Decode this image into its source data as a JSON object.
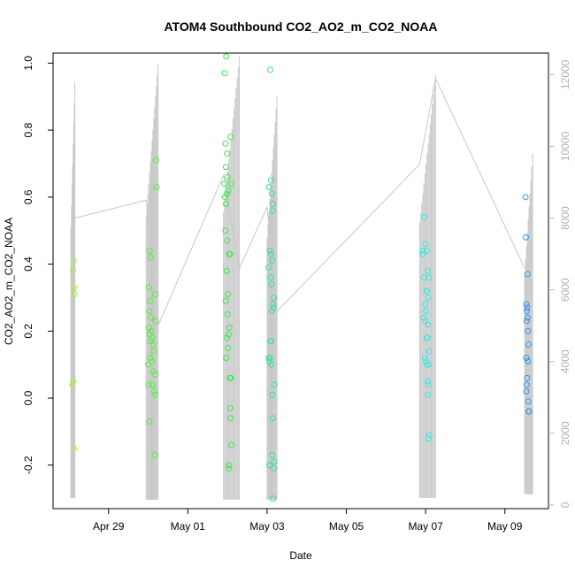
{
  "chart_data": {
    "type": "scatter",
    "title": "ATOM4 Southbound CO2_AO2_m_CO2_NOAA",
    "xlabel": "Date",
    "ylabel": "CO2_AO2_m_CO2_NOAA",
    "x_ticks": [
      {
        "day": 2,
        "label": "Apr 29"
      },
      {
        "day": 4,
        "label": "May 01"
      },
      {
        "day": 6,
        "label": "May 03"
      },
      {
        "day": 8,
        "label": "May 05"
      },
      {
        "day": 10,
        "label": "May 07"
      },
      {
        "day": 12,
        "label": "May 09"
      }
    ],
    "xlim": [
      0.6,
      13.1
    ],
    "ylim": [
      -0.33,
      1.03
    ],
    "y_ticks": [
      -0.2,
      0.0,
      0.2,
      0.4,
      0.6,
      0.8,
      1.0
    ],
    "y_tick_labels": [
      "-0.2",
      "0.0",
      "0.2",
      "0.4",
      "0.6",
      "0.8",
      "1.0"
    ],
    "y2lim": [
      -100,
      12600
    ],
    "y2_ticks": [
      0,
      2000,
      4000,
      6000,
      8000,
      10000,
      12000
    ],
    "y2_tick_labels": [
      "0",
      "2000",
      "4000",
      "6000",
      "8000",
      "10000",
      "12000"
    ],
    "grid": false,
    "series": [
      {
        "color": "#a8f23a",
        "points": [
          [
            1.12,
            0.41
          ],
          [
            1.1,
            0.38
          ],
          [
            1.13,
            0.33
          ],
          [
            1.14,
            0.31
          ],
          [
            1.11,
            0.05
          ],
          [
            1.09,
            0.04
          ],
          [
            1.13,
            -0.15
          ]
        ]
      },
      {
        "color": "#55ee40",
        "points": [
          [
            3.04,
            0.44
          ],
          [
            3.06,
            0.42
          ],
          [
            3.02,
            0.33
          ],
          [
            3.05,
            0.29
          ],
          [
            3.03,
            0.26
          ],
          [
            3.07,
            0.24
          ],
          [
            3.02,
            0.21
          ],
          [
            3.04,
            0.19
          ],
          [
            3.06,
            0.17
          ],
          [
            3.08,
            0.2
          ],
          [
            3.1,
            0.18
          ],
          [
            3.12,
            0.16
          ],
          [
            3.14,
            0.14
          ],
          [
            3.05,
            0.12
          ],
          [
            3.09,
            0.11
          ],
          [
            3.13,
            0.08
          ],
          [
            3.0,
            0.1
          ],
          [
            3.01,
            0.04
          ],
          [
            3.11,
            0.04
          ],
          [
            3.15,
            0.02
          ],
          [
            3.17,
            0.01
          ],
          [
            3.03,
            -0.07
          ],
          [
            3.18,
            0.07
          ],
          [
            3.19,
            0.23
          ],
          [
            3.2,
            0.71
          ],
          [
            3.21,
            0.63
          ],
          [
            3.18,
            0.31
          ],
          [
            3.17,
            -0.17
          ]
        ]
      },
      {
        "color": "#3ee84e",
        "points": [
          [
            4.97,
            1.02
          ],
          [
            4.93,
            0.97
          ],
          [
            4.95,
            0.76
          ],
          [
            4.99,
            0.73
          ],
          [
            4.96,
            0.69
          ],
          [
            4.92,
            0.64
          ],
          [
            5.0,
            0.66
          ],
          [
            4.98,
            0.61
          ],
          [
            4.94,
            0.6
          ],
          [
            5.02,
            0.62
          ],
          [
            4.96,
            0.58
          ],
          [
            4.95,
            0.5
          ],
          [
            4.99,
            0.47
          ],
          [
            5.04,
            0.43
          ],
          [
            5.07,
            0.43
          ],
          [
            5.08,
            0.78
          ],
          [
            5.1,
            0.64
          ],
          [
            4.98,
            0.38
          ],
          [
            5.01,
            0.31
          ],
          [
            4.96,
            0.29
          ],
          [
            5.0,
            0.25
          ],
          [
            5.05,
            0.21
          ],
          [
            5.03,
            0.19
          ],
          [
            4.99,
            0.18
          ],
          [
            5.01,
            0.15
          ],
          [
            4.97,
            0.12
          ],
          [
            5.06,
            0.06
          ],
          [
            5.09,
            0.06
          ],
          [
            5.07,
            -0.03
          ],
          [
            5.08,
            -0.06
          ],
          [
            5.1,
            -0.14
          ],
          [
            5.04,
            -0.2
          ],
          [
            5.03,
            -0.21
          ]
        ]
      },
      {
        "color": "#36e394",
        "points": [
          [
            6.08,
            0.98
          ],
          [
            6.1,
            0.65
          ],
          [
            6.05,
            0.63
          ],
          [
            6.12,
            0.61
          ],
          [
            6.15,
            0.58
          ],
          [
            6.14,
            0.56
          ],
          [
            6.07,
            0.44
          ],
          [
            6.1,
            0.43
          ],
          [
            6.13,
            0.41
          ],
          [
            6.04,
            0.39
          ],
          [
            6.09,
            0.36
          ],
          [
            6.11,
            0.34
          ],
          [
            6.17,
            0.3
          ],
          [
            6.15,
            0.28
          ],
          [
            6.16,
            0.27
          ],
          [
            6.12,
            0.26
          ],
          [
            6.09,
            0.17
          ],
          [
            6.1,
            0.17
          ],
          [
            6.04,
            0.12
          ],
          [
            6.06,
            0.11
          ],
          [
            6.08,
            0.12
          ],
          [
            6.11,
            0.1
          ],
          [
            6.18,
            0.04
          ],
          [
            6.13,
            0.01
          ],
          [
            6.14,
            -0.06
          ],
          [
            6.13,
            -0.17
          ],
          [
            6.06,
            -0.2
          ],
          [
            6.18,
            -0.19
          ],
          [
            6.17,
            -0.21
          ],
          [
            6.15,
            -0.3
          ]
        ]
      },
      {
        "color": "#3ae8e0",
        "points": [
          [
            9.97,
            0.54
          ],
          [
            9.94,
            0.44
          ],
          [
            9.93,
            0.43
          ],
          [
            10.0,
            0.46
          ],
          [
            10.03,
            0.44
          ],
          [
            10.05,
            0.38
          ],
          [
            10.08,
            0.36
          ],
          [
            9.96,
            0.36
          ],
          [
            10.02,
            0.32
          ],
          [
            10.04,
            0.32
          ],
          [
            10.07,
            0.3
          ],
          [
            9.99,
            0.28
          ],
          [
            10.01,
            0.26
          ],
          [
            9.95,
            0.24
          ],
          [
            10.0,
            0.23
          ],
          [
            10.06,
            0.22
          ],
          [
            10.03,
            0.18
          ],
          [
            10.05,
            0.18
          ],
          [
            10.09,
            0.14
          ],
          [
            9.98,
            0.12
          ],
          [
            10.01,
            0.11
          ],
          [
            10.04,
            0.1
          ],
          [
            10.08,
            0.1
          ],
          [
            10.05,
            0.05
          ],
          [
            10.07,
            0.04
          ],
          [
            10.06,
            0.01
          ],
          [
            10.09,
            -0.11
          ],
          [
            10.07,
            -0.12
          ]
        ]
      },
      {
        "color": "#3296e8",
        "points": [
          [
            12.52,
            0.6
          ],
          [
            12.53,
            0.48
          ],
          [
            12.57,
            0.37
          ],
          [
            12.54,
            0.28
          ],
          [
            12.56,
            0.27
          ],
          [
            12.55,
            0.26
          ],
          [
            12.57,
            0.24
          ],
          [
            12.55,
            0.23
          ],
          [
            12.58,
            0.2
          ],
          [
            12.6,
            0.16
          ],
          [
            12.54,
            0.12
          ],
          [
            12.58,
            0.11
          ],
          [
            12.56,
            0.06
          ],
          [
            12.55,
            0.04
          ],
          [
            12.54,
            0.02
          ],
          [
            12.59,
            -0.01
          ],
          [
            12.61,
            -0.04
          ],
          [
            12.6,
            -0.04
          ]
        ]
      }
    ],
    "secondary_series": {
      "type": "line",
      "axis": "right",
      "color": "#c8c8c8",
      "bursts": [
        {
          "x0": 1.05,
          "x1": 1.15,
          "count": 8,
          "low": 200,
          "high": 11800
        },
        {
          "x0": 2.95,
          "x1": 3.25,
          "count": 15,
          "low": 150,
          "high": 12300
        },
        {
          "x0": 4.9,
          "x1": 5.3,
          "count": 16,
          "low": 150,
          "high": 12500
        },
        {
          "x0": 6.0,
          "x1": 6.25,
          "count": 12,
          "low": 150,
          "high": 11400
        },
        {
          "x0": 9.85,
          "x1": 10.25,
          "count": 16,
          "low": 200,
          "high": 12000
        },
        {
          "x0": 12.5,
          "x1": 12.7,
          "count": 10,
          "low": 300,
          "high": 9800
        }
      ],
      "connectors": [
        [
          1.15,
          8000
        ],
        [
          2.95,
          8500
        ],
        [
          3.25,
          5000
        ],
        [
          4.9,
          9200
        ],
        [
          5.3,
          6600
        ],
        [
          6.0,
          8300
        ],
        [
          6.25,
          5400
        ],
        [
          9.85,
          9500
        ],
        [
          10.25,
          11900
        ],
        [
          12.5,
          6600
        ]
      ]
    }
  }
}
